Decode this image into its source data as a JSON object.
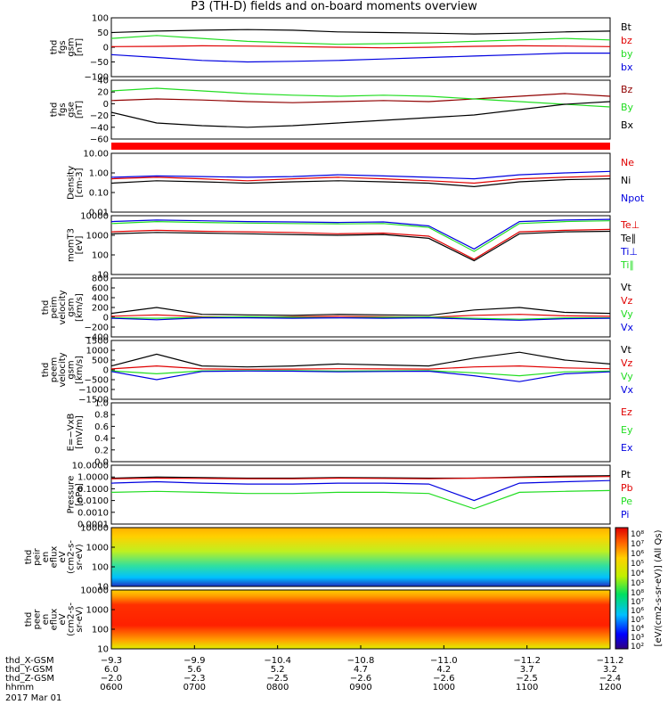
{
  "title": "P3 (TH-D) fields and on-board moments overview",
  "colors": {
    "black": "#000000",
    "red": "#e00000",
    "green": "#22dd22",
    "blue": "#0000e0",
    "dred": "#900000"
  },
  "status_bar": {
    "color": "#ff0000"
  },
  "chart_data": [
    {
      "id": "fgs_gsm",
      "type": "line",
      "ylabel": [
        "thd",
        "fgs",
        "gsm",
        "[nT]"
      ],
      "ticks": [
        "100",
        "50",
        "0",
        "−50",
        "−100"
      ],
      "ylim": [
        -100,
        100
      ],
      "series": [
        {
          "name": "Bt",
          "color": "black",
          "values": [
            50,
            55,
            58,
            60,
            58,
            52,
            50,
            48,
            45,
            48,
            52,
            55
          ]
        },
        {
          "name": "bz",
          "color": "red",
          "values": [
            2,
            3,
            5,
            4,
            2,
            0,
            -2,
            0,
            3,
            5,
            4,
            2
          ]
        },
        {
          "name": "by",
          "color": "green",
          "values": [
            30,
            40,
            30,
            20,
            15,
            10,
            12,
            15,
            20,
            25,
            30,
            25
          ]
        },
        {
          "name": "bx",
          "color": "blue",
          "values": [
            -25,
            -35,
            -45,
            -50,
            -48,
            -45,
            -40,
            -35,
            -30,
            -25,
            -20,
            -20
          ]
        }
      ]
    },
    {
      "id": "fgs_gse",
      "type": "line",
      "ylabel": [
        "thd",
        "fgs",
        "gse",
        "[nT]"
      ],
      "ticks": [
        "40",
        "20",
        "0",
        "−20",
        "−40",
        "−60"
      ],
      "ylim": [
        -70,
        40
      ],
      "series": [
        {
          "name": "Bz",
          "color": "dred",
          "values": [
            2,
            5,
            3,
            0,
            -2,
            0,
            2,
            0,
            5,
            10,
            15,
            10
          ]
        },
        {
          "name": "By",
          "color": "green",
          "values": [
            20,
            25,
            20,
            15,
            12,
            10,
            12,
            10,
            5,
            0,
            -5,
            -10
          ]
        },
        {
          "name": "Bx",
          "color": "black",
          "values": [
            -20,
            -40,
            -45,
            -48,
            -45,
            -40,
            -35,
            -30,
            -25,
            -15,
            -5,
            0
          ]
        }
      ]
    },
    {
      "id": "density",
      "type": "line",
      "ylabel": [
        "Density",
        "[cm-3]"
      ],
      "ticks": [
        "10.00",
        "1.00",
        "0.10",
        "0.01"
      ],
      "ylim": [
        0.01,
        10
      ],
      "log": true,
      "series": [
        {
          "name": "Ne",
          "color": "red",
          "values": [
            0.5,
            0.6,
            0.5,
            0.4,
            0.5,
            0.6,
            0.5,
            0.4,
            0.3,
            0.5,
            0.6,
            0.7
          ]
        },
        {
          "name": "Ni",
          "color": "black",
          "values": [
            0.3,
            0.4,
            0.35,
            0.3,
            0.35,
            0.4,
            0.35,
            0.3,
            0.2,
            0.35,
            0.45,
            0.5
          ]
        },
        {
          "name": "Npot",
          "color": "blue",
          "values": [
            0.6,
            0.7,
            0.65,
            0.6,
            0.65,
            0.8,
            0.7,
            0.6,
            0.5,
            0.8,
            1.0,
            1.2
          ]
        }
      ]
    },
    {
      "id": "mom_temp",
      "type": "line",
      "ylabel": [
        "momT3",
        "[eV]"
      ],
      "ticks": [
        "10000",
        "1000",
        "100",
        "10"
      ],
      "ylim": [
        10,
        10000
      ],
      "log": true,
      "series": [
        {
          "name": "Te⊥",
          "color": "red",
          "values": [
            1500,
            1800,
            1600,
            1500,
            1400,
            1200,
            1300,
            900,
            60,
            1500,
            1800,
            2000
          ]
        },
        {
          "name": "Te∥",
          "color": "black",
          "values": [
            1200,
            1400,
            1300,
            1200,
            1100,
            1000,
            1100,
            700,
            50,
            1200,
            1500,
            1600
          ]
        },
        {
          "name": "Ti⊥",
          "color": "blue",
          "values": [
            5000,
            6000,
            5500,
            5000,
            4800,
            4500,
            4800,
            3000,
            200,
            5000,
            6000,
            6500
          ]
        },
        {
          "name": "Ti∥",
          "color": "green",
          "values": [
            4000,
            5000,
            4500,
            4200,
            4000,
            3800,
            4000,
            2500,
            150,
            4000,
            5000,
            5500
          ]
        }
      ]
    },
    {
      "id": "peim_vel",
      "type": "line",
      "ylabel": [
        "thd",
        "peim",
        "velocity",
        "gsm",
        "[km/s]"
      ],
      "ticks": [
        "800",
        "600",
        "400",
        "200",
        "0",
        "−200",
        "−400"
      ],
      "ylim": [
        -400,
        800
      ],
      "series": [
        {
          "name": "Vt",
          "color": "black",
          "values": [
            80,
            200,
            60,
            50,
            40,
            60,
            50,
            40,
            150,
            200,
            100,
            80
          ]
        },
        {
          "name": "Vz",
          "color": "red",
          "values": [
            20,
            50,
            10,
            0,
            10,
            20,
            10,
            0,
            40,
            60,
            30,
            20
          ]
        },
        {
          "name": "Vy",
          "color": "green",
          "values": [
            -10,
            -20,
            0,
            10,
            0,
            -10,
            0,
            5,
            -20,
            -40,
            -10,
            -10
          ]
        },
        {
          "name": "Vx",
          "color": "blue",
          "values": [
            -20,
            -50,
            -10,
            -10,
            -20,
            -10,
            -20,
            -10,
            -40,
            -60,
            -30,
            -20
          ]
        }
      ]
    },
    {
      "id": "peem_vel",
      "type": "line",
      "ylabel": [
        "thd",
        "peem",
        "velocity",
        "gsm",
        "[km/s]"
      ],
      "ticks": [
        "1500",
        "1000",
        "500",
        "0",
        "−500",
        "−1000",
        "−1500"
      ],
      "ylim": [
        -1500,
        1500
      ],
      "series": [
        {
          "name": "Vt",
          "color": "black",
          "values": [
            200,
            800,
            200,
            150,
            200,
            300,
            250,
            200,
            600,
            900,
            500,
            300
          ]
        },
        {
          "name": "Vz",
          "color": "red",
          "values": [
            50,
            200,
            50,
            30,
            40,
            60,
            50,
            40,
            150,
            200,
            100,
            60
          ]
        },
        {
          "name": "Vy",
          "color": "green",
          "values": [
            -50,
            -200,
            -50,
            -40,
            -40,
            -60,
            -50,
            -40,
            -150,
            -300,
            -100,
            -60
          ]
        },
        {
          "name": "Vx",
          "color": "blue",
          "values": [
            -80,
            -500,
            -80,
            -60,
            -70,
            -100,
            -80,
            -70,
            -300,
            -600,
            -200,
            -100
          ]
        }
      ]
    },
    {
      "id": "efield",
      "type": "line",
      "ylabel": [
        "E=−VxB",
        "[mV/m]"
      ],
      "ticks": [
        "1.0",
        "0.8",
        "0.6",
        "0.4",
        "0.2",
        "0.0"
      ],
      "ylim": [
        0,
        1
      ],
      "series": [
        {
          "name": "Ez",
          "color": "red",
          "values": []
        },
        {
          "name": "Ey",
          "color": "green",
          "values": []
        },
        {
          "name": "Ex",
          "color": "blue",
          "values": []
        }
      ]
    },
    {
      "id": "pressure",
      "type": "line",
      "ylabel": [
        "Pressure",
        "[nPa]"
      ],
      "ticks": [
        "10.0000",
        "1.0000",
        "0.1000",
        "0.0100",
        "0.0010",
        "0.0001"
      ],
      "ylim": [
        0.0001,
        10
      ],
      "log": true,
      "series": [
        {
          "name": "Pt",
          "color": "black",
          "values": [
            0.8,
            1.0,
            0.9,
            0.8,
            0.8,
            0.9,
            0.85,
            0.8,
            0.8,
            1.0,
            1.2,
            1.3
          ]
        },
        {
          "name": "Pb",
          "color": "red",
          "values": [
            0.7,
            0.8,
            0.75,
            0.7,
            0.7,
            0.8,
            0.75,
            0.7,
            0.8,
            0.9,
            1.0,
            1.1
          ]
        },
        {
          "name": "Pe",
          "color": "green",
          "values": [
            0.05,
            0.06,
            0.05,
            0.04,
            0.04,
            0.05,
            0.05,
            0.04,
            0.002,
            0.05,
            0.06,
            0.07
          ]
        },
        {
          "name": "Pi",
          "color": "blue",
          "values": [
            0.3,
            0.4,
            0.3,
            0.25,
            0.25,
            0.3,
            0.3,
            0.25,
            0.01,
            0.3,
            0.4,
            0.5
          ]
        }
      ]
    },
    {
      "id": "peir_spec",
      "type": "heatmap",
      "ylabel": [
        "thd",
        "peir",
        "en",
        "eflux",
        "eV",
        "(cm2-s-",
        "sr-eV)"
      ],
      "ticks": [
        "10000",
        "1000",
        "100",
        "10"
      ]
    },
    {
      "id": "peer_spec",
      "type": "heatmap",
      "ylabel": [
        "thd",
        "peer",
        "en",
        "eflux",
        "eV",
        "(cm2-s-",
        "sr-eV)"
      ],
      "ticks": [
        "10000",
        "1000",
        "100",
        "10"
      ]
    }
  ],
  "colorbar": {
    "label": "[eV/(cm2-s-sr-eV)] (All Qs)",
    "ticks_upper": [
      "10⁸",
      "10⁷",
      "10⁶",
      "10⁵",
      "10⁴",
      "10³"
    ],
    "ticks_lower": [
      "10⁸",
      "10⁷",
      "10⁶",
      "10⁵",
      "10⁴",
      "10³",
      "10²"
    ]
  },
  "x_axis": {
    "rows": [
      {
        "label": "thd_X-GSM",
        "values": [
          "−9.3",
          "−9.9",
          "−10.4",
          "−10.8",
          "−11.0",
          "−11.2",
          "−11.2"
        ]
      },
      {
        "label": "thd_Y-GSM",
        "values": [
          "6.0",
          "5.6",
          "5.2",
          "4.7",
          "4.2",
          "3.7",
          "3.2"
        ]
      },
      {
        "label": "thd_Z-GSM",
        "values": [
          "−2.0",
          "−2.3",
          "−2.5",
          "−2.6",
          "−2.6",
          "−2.5",
          "−2.4"
        ]
      },
      {
        "label": "hhmm",
        "values": [
          "0600",
          "0700",
          "0800",
          "0900",
          "1000",
          "1100",
          "1200"
        ]
      }
    ],
    "date": "2017 Mar 01"
  }
}
